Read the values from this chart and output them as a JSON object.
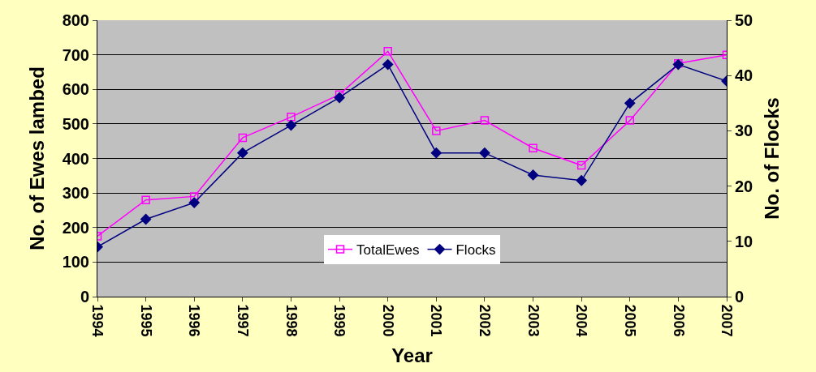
{
  "chart_data": {
    "type": "line",
    "xlabel": "Year",
    "ylabel": "No. of Ewes lambed",
    "y2label": "No. of Flocks",
    "categories": [
      "1994",
      "1995",
      "1996",
      "1997",
      "1998",
      "1999",
      "2000",
      "2001",
      "2002",
      "2003",
      "2004",
      "2005",
      "2006",
      "2007"
    ],
    "series": [
      {
        "name": "TotalEwes",
        "color": "#ff00ff",
        "marker": "square",
        "values": [
          175,
          280,
          290,
          460,
          520,
          585,
          710,
          480,
          510,
          430,
          380,
          510,
          675,
          700
        ]
      },
      {
        "name": "Flocks",
        "color": "#000080",
        "marker": "diamond",
        "axis": "y2",
        "values": [
          9,
          14,
          17,
          26,
          31,
          36,
          42,
          26,
          26,
          22,
          21,
          35,
          42,
          39
        ]
      }
    ],
    "ylim": [
      0,
      800
    ],
    "yticks": [
      0,
      100,
      200,
      300,
      400,
      500,
      600,
      700,
      800
    ],
    "y2lim": [
      0,
      50
    ],
    "y2ticks": [
      0,
      10,
      20,
      30,
      40,
      50
    ],
    "grid": "y",
    "legend": "bottom",
    "line_style": "solid"
  }
}
